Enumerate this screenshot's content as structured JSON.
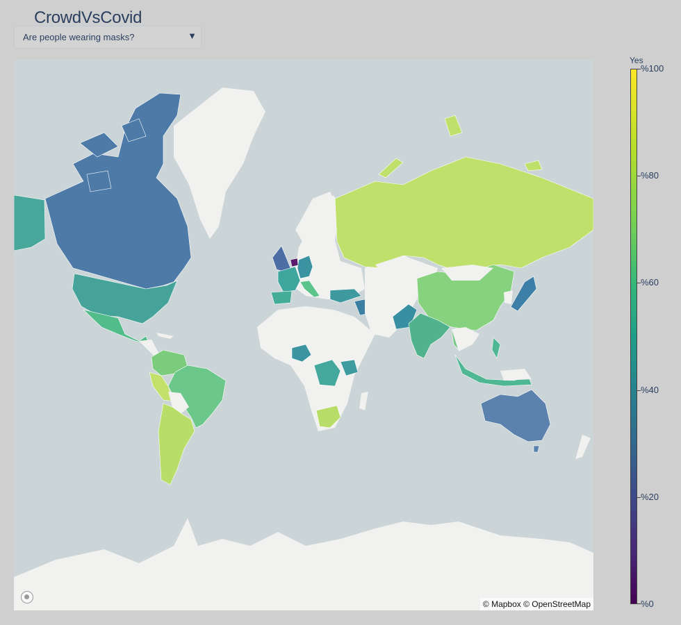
{
  "app": {
    "title": "CrowdVsCovid"
  },
  "question_dropdown": {
    "selected": "Are people wearing masks?",
    "arrow": "▼"
  },
  "map": {
    "attribution": "© Mapbox © OpenStreetMap",
    "logo_icon": "mapbox-logo-icon",
    "colors": {
      "ocean": "#cbd4d6",
      "no_data_land": "#f1f1f0",
      "outline": "#ffffff"
    },
    "regions": [
      {
        "name": "Canada",
        "value": 35,
        "color": "#4e7aa8"
      },
      {
        "name": "Alaska",
        "value": 55,
        "color": "#46a79a"
      },
      {
        "name": "United States",
        "value": 55,
        "color": "#45a39a"
      },
      {
        "name": "Mexico",
        "value": 62,
        "color": "#52bc8a"
      },
      {
        "name": "Colombia / Venezuela",
        "value": 72,
        "color": "#7ccc7d"
      },
      {
        "name": "Peru",
        "value": 85,
        "color": "#c3e06b"
      },
      {
        "name": "Brazil",
        "value": 70,
        "color": "#6cc88a"
      },
      {
        "name": "Argentina / Chile",
        "value": 85,
        "color": "#b8dd68"
      },
      {
        "name": "United Kingdom",
        "value": 35,
        "color": "#4d6ea4"
      },
      {
        "name": "Netherlands",
        "value": 10,
        "color": "#5a1d6e"
      },
      {
        "name": "Germany",
        "value": 50,
        "color": "#3b93a2"
      },
      {
        "name": "France",
        "value": 55,
        "color": "#3ea69d"
      },
      {
        "name": "Spain",
        "value": 55,
        "color": "#45ac98"
      },
      {
        "name": "Italy",
        "value": 65,
        "color": "#5cc38a"
      },
      {
        "name": "Turkey",
        "value": 50,
        "color": "#3f9aa0"
      },
      {
        "name": "Iraq",
        "value": 40,
        "color": "#3b7fa3"
      },
      {
        "name": "Russia",
        "value": 85,
        "color": "#bfe06a"
      },
      {
        "name": "China",
        "value": 75,
        "color": "#86d27f"
      },
      {
        "name": "Japan",
        "value": 40,
        "color": "#3d7fa6"
      },
      {
        "name": "Pakistan",
        "value": 45,
        "color": "#388fa2"
      },
      {
        "name": "India",
        "value": 60,
        "color": "#51b38e"
      },
      {
        "name": "Thailand",
        "value": 70,
        "color": "#74c985"
      },
      {
        "name": "Indonesia",
        "value": 62,
        "color": "#4fb793"
      },
      {
        "name": "Australia",
        "value": 35,
        "color": "#5a82ad"
      },
      {
        "name": "Nigeria",
        "value": 50,
        "color": "#3b94a0"
      },
      {
        "name": "DR Congo",
        "value": 55,
        "color": "#45a89c"
      },
      {
        "name": "Kenya",
        "value": 52,
        "color": "#3e9b9e"
      },
      {
        "name": "South Africa",
        "value": 85,
        "color": "#b7dd68"
      }
    ]
  },
  "colorbar": {
    "title": "Yes",
    "ticks": [
      "%100",
      "%80",
      "%60",
      "%40",
      "%20",
      "%0"
    ],
    "tick_values": [
      100,
      80,
      60,
      40,
      20,
      0
    ],
    "colorscale": "viridis"
  }
}
